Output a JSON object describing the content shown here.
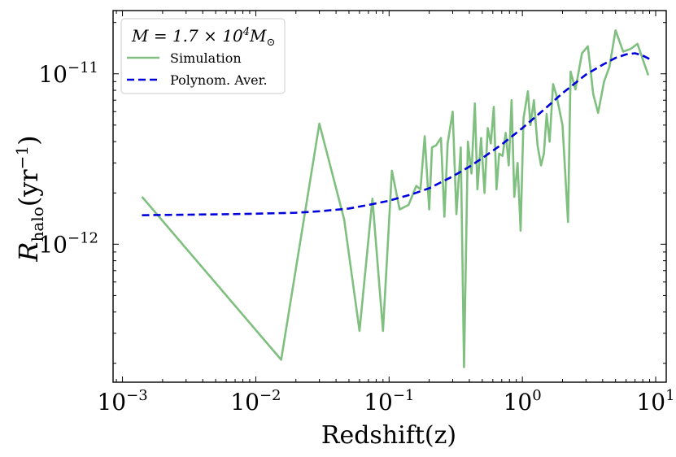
{
  "chart_data": {
    "type": "line",
    "xscale": "log",
    "yscale": "log",
    "xlim": [
      0.00085,
      12
    ],
    "ylim": [
      1.55e-13,
      2.35e-11
    ],
    "xlabel": "Redshift(z)",
    "ylabel": {
      "symbol": "R",
      "subscript": "halo",
      "units": "(yr",
      "units_exp": "−1",
      "units_close": ")"
    },
    "x_ticks": [
      {
        "value": 0.001,
        "base": "10",
        "exp": "−3"
      },
      {
        "value": 0.01,
        "base": "10",
        "exp": "−2"
      },
      {
        "value": 0.1,
        "base": "10",
        "exp": "−1"
      },
      {
        "value": 1,
        "base": "10",
        "exp": "0"
      },
      {
        "value": 10,
        "base": "10",
        "exp": "1"
      }
    ],
    "y_ticks": [
      {
        "value": 1e-12,
        "base": "10",
        "exp": "−12"
      },
      {
        "value": 1e-11,
        "base": "10",
        "exp": "−11"
      }
    ],
    "legend": {
      "placement": "top-left",
      "title": {
        "prefix": "M = 1.7 × 10",
        "exp": "4",
        "mass": "M",
        "sub": "⊙"
      },
      "entries": [
        {
          "label": "Simulation",
          "style": "solid",
          "color": "#7fbf7f"
        },
        {
          "label": "Polynom. Aver.",
          "style": "dashed",
          "color": "#0000dd"
        }
      ]
    },
    "series": [
      {
        "name": "Simulation",
        "color": "#7fbf7f",
        "x": [
          0.0014,
          0.0155,
          0.03,
          0.046,
          0.06,
          0.075,
          0.09,
          0.105,
          0.12,
          0.14,
          0.16,
          0.172,
          0.185,
          0.2,
          0.21,
          0.225,
          0.245,
          0.26,
          0.275,
          0.3,
          0.32,
          0.345,
          0.365,
          0.39,
          0.415,
          0.44,
          0.46,
          0.49,
          0.52,
          0.55,
          0.58,
          0.61,
          0.64,
          0.67,
          0.71,
          0.75,
          0.79,
          0.83,
          0.87,
          0.92,
          0.97,
          1.02,
          1.1,
          1.15,
          1.22,
          1.3,
          1.38,
          1.45,
          1.52,
          1.6,
          1.7,
          1.8,
          2.0,
          2.2,
          2.3,
          2.5,
          2.8,
          3.1,
          3.4,
          3.7,
          4.1,
          4.5,
          5.0,
          5.7,
          6.5,
          7.3,
          8.8
        ],
        "values": [
          1.9e-12,
          2.1e-13,
          5.1e-12,
          1.4e-12,
          3.1e-13,
          1.85e-12,
          3.1e-13,
          2.7e-12,
          1.6e-12,
          1.7e-12,
          2.2e-12,
          2.1e-12,
          4.3e-12,
          1.6e-12,
          3.7e-12,
          3.8e-12,
          4.2e-12,
          1.45e-12,
          3.9e-12,
          6e-12,
          1.5e-12,
          3.7e-12,
          1.9e-13,
          4e-12,
          2.6e-12,
          6.7e-12,
          2.1e-12,
          4.2e-12,
          2e-12,
          4.8e-12,
          3.9e-12,
          6.4e-12,
          2.1e-12,
          3.4e-12,
          3.3e-12,
          4.5e-12,
          2.9e-12,
          7e-12,
          1.9e-12,
          3e-12,
          1.2e-12,
          5.5e-12,
          7.9e-12,
          5e-12,
          7e-12,
          3.8e-12,
          2.9e-12,
          3.4e-12,
          5.8e-12,
          4e-12,
          8.7e-12,
          7.5e-12,
          5e-12,
          1.35e-12,
          1.03e-11,
          8.1e-12,
          1.32e-11,
          1.45e-11,
          7.6e-12,
          5.9e-12,
          9e-12,
          1.1e-11,
          1.8e-11,
          1.35e-11,
          1.4e-11,
          1.5e-11,
          9.8e-12
        ]
      },
      {
        "name": "Polynom. Aver.",
        "color": "#0000dd",
        "x": [
          0.0014,
          0.003,
          0.006,
          0.01,
          0.02,
          0.03,
          0.05,
          0.07,
          0.1,
          0.15,
          0.2,
          0.3,
          0.4,
          0.5,
          0.7,
          1.0,
          1.5,
          2.0,
          3.0,
          4.0,
          5.0,
          6.0,
          7.0,
          8.0,
          9.0
        ],
        "values": [
          1.48e-12,
          1.49e-12,
          1.5e-12,
          1.51e-12,
          1.53e-12,
          1.56e-12,
          1.62e-12,
          1.7e-12,
          1.8e-12,
          1.97e-12,
          2.13e-12,
          2.5e-12,
          2.85e-12,
          3.2e-12,
          3.85e-12,
          4.8e-12,
          6.3e-12,
          7.7e-12,
          9.9e-12,
          1.13e-11,
          1.24e-11,
          1.3e-11,
          1.32e-11,
          1.28e-11,
          1.22e-11
        ]
      }
    ]
  }
}
